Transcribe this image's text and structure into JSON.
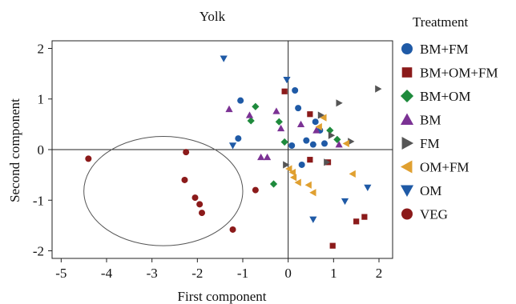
{
  "chart_data": {
    "type": "scatter",
    "title": "Yolk",
    "xlabel": "First component",
    "ylabel": "Second component",
    "xlim": [
      -5.2,
      2.3
    ],
    "ylim": [
      -2.15,
      2.15
    ],
    "xticks": [
      -5,
      -4,
      -3,
      -2,
      -1,
      0,
      1,
      2
    ],
    "yticks": [
      -2,
      -1,
      0,
      1,
      2
    ],
    "grid": false,
    "reference_lines": {
      "x": 0,
      "y": 0
    },
    "legend": {
      "title": "Treatment",
      "placement": "right"
    },
    "annotation_ellipse": {
      "center": [
        -2.75,
        -0.82
      ],
      "radii": [
        1.75,
        1.08
      ],
      "encloses": "VEG"
    },
    "series": [
      {
        "name": "BM+FM",
        "marker": "circle",
        "color": "#1f5aa6",
        "points": [
          [
            -1.05,
            0.97
          ],
          [
            -1.1,
            0.22
          ],
          [
            0.15,
            1.17
          ],
          [
            0.22,
            0.82
          ],
          [
            0.4,
            0.18
          ],
          [
            0.55,
            0.1
          ],
          [
            0.7,
            0.38
          ],
          [
            0.3,
            -0.3
          ],
          [
            0.8,
            0.12
          ],
          [
            0.08,
            0.08
          ],
          [
            0.6,
            0.55
          ]
        ]
      },
      {
        "name": "BM+OM+FM",
        "marker": "square",
        "color": "#8b1a1a",
        "points": [
          [
            -0.08,
            1.15
          ],
          [
            0.48,
            0.7
          ],
          [
            0.88,
            -0.25
          ],
          [
            0.48,
            -0.2
          ],
          [
            1.5,
            -1.42
          ],
          [
            1.68,
            -1.33
          ],
          [
            0.98,
            -1.9
          ]
        ]
      },
      {
        "name": "BM+OM",
        "marker": "diamond",
        "color": "#1e8a3c",
        "points": [
          [
            -0.72,
            0.85
          ],
          [
            -0.82,
            0.57
          ],
          [
            -0.2,
            0.55
          ],
          [
            -0.08,
            0.15
          ],
          [
            -0.32,
            -0.68
          ],
          [
            0.92,
            0.38
          ],
          [
            1.08,
            0.2
          ]
        ]
      },
      {
        "name": "BM",
        "marker": "triangle-up",
        "color": "#7b3294",
        "points": [
          [
            -1.3,
            0.8
          ],
          [
            -0.85,
            0.68
          ],
          [
            -0.26,
            0.76
          ],
          [
            -0.16,
            0.42
          ],
          [
            0.28,
            0.5
          ],
          [
            0.62,
            0.38
          ],
          [
            -0.6,
            -0.15
          ],
          [
            -0.46,
            -0.15
          ],
          [
            1.12,
            0.1
          ]
        ]
      },
      {
        "name": "FM",
        "marker": "triangle-right",
        "color": "#555555",
        "points": [
          [
            0.72,
            0.68
          ],
          [
            1.12,
            0.92
          ],
          [
            1.98,
            1.2
          ],
          [
            1.38,
            0.16
          ],
          [
            0.95,
            0.28
          ],
          [
            0.85,
            -0.25
          ],
          [
            -0.05,
            -0.3
          ]
        ]
      },
      {
        "name": "OM+FM",
        "marker": "triangle-left",
        "color": "#e0a030",
        "points": [
          [
            0.78,
            0.63
          ],
          [
            0.1,
            -0.45
          ],
          [
            0.12,
            -0.55
          ],
          [
            0.22,
            -0.65
          ],
          [
            0.45,
            -0.7
          ],
          [
            0.55,
            -0.85
          ],
          [
            1.42,
            -0.48
          ],
          [
            0.68,
            0.45
          ],
          [
            0.02,
            -0.38
          ],
          [
            1.28,
            0.12
          ]
        ]
      },
      {
        "name": "OM",
        "marker": "triangle-down",
        "color": "#1f5aa6",
        "points": [
          [
            -1.42,
            1.8
          ],
          [
            -1.22,
            0.08
          ],
          [
            -0.03,
            1.38
          ],
          [
            0.55,
            -1.38
          ],
          [
            1.25,
            -1.02
          ],
          [
            1.75,
            -0.75
          ]
        ]
      },
      {
        "name": "VEG",
        "marker": "circle",
        "color": "#8b1a1a",
        "points": [
          [
            -4.4,
            -0.18
          ],
          [
            -2.25,
            -0.05
          ],
          [
            -2.28,
            -0.6
          ],
          [
            -2.05,
            -0.95
          ],
          [
            -1.95,
            -1.08
          ],
          [
            -1.9,
            -1.25
          ],
          [
            -1.22,
            -1.58
          ],
          [
            -0.72,
            -0.8
          ]
        ]
      }
    ]
  }
}
